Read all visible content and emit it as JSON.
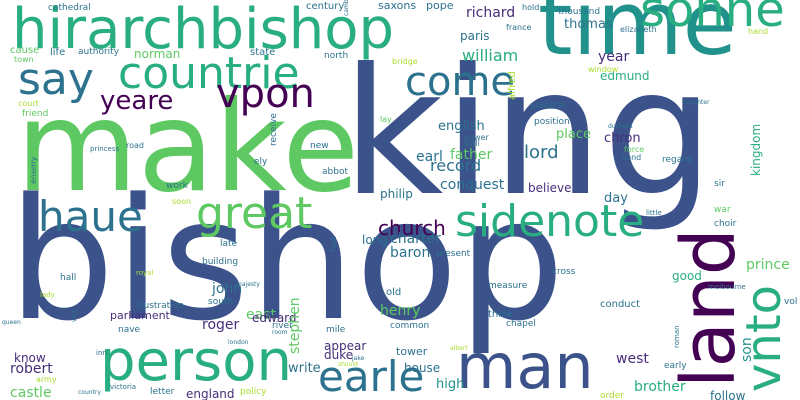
{
  "palette": {
    "c1": "#3b528b",
    "c2": "#21918c",
    "c3": "#5ec962",
    "c4": "#440154",
    "c5": "#2c728e",
    "c6": "#28ae80",
    "c7": "#addc30",
    "c8": "#472d7b",
    "c9": "#fde725"
  },
  "words": [
    {
      "id": "bishop",
      "text": "bishop",
      "color": "c1"
    },
    {
      "id": "king",
      "text": "king",
      "color": "c1"
    },
    {
      "id": "make",
      "text": "make",
      "color": "c3"
    },
    {
      "id": "time",
      "text": "time",
      "color": "c2"
    },
    {
      "id": "hirarchbishop",
      "text": "hirarchbishop",
      "color": "c6"
    },
    {
      "id": "sonne",
      "text": "sonne",
      "color": "c6"
    },
    {
      "id": "say",
      "text": "say",
      "color": "c5"
    },
    {
      "id": "countrie",
      "text": "countrie",
      "color": "c6"
    },
    {
      "id": "come",
      "text": "come",
      "color": "c5"
    },
    {
      "id": "yeare",
      "text": "yeare",
      "color": "c4"
    },
    {
      "id": "vpon",
      "text": "vpon",
      "color": "c4"
    },
    {
      "id": "haue",
      "text": "haue",
      "color": "c5"
    },
    {
      "id": "great",
      "text": "great",
      "color": "c3"
    },
    {
      "id": "sidenote",
      "text": "sidenote",
      "color": "c6"
    },
    {
      "id": "person",
      "text": "person",
      "color": "c6"
    },
    {
      "id": "earle",
      "text": "earle",
      "color": "c5"
    },
    {
      "id": "man",
      "text": "man",
      "color": "c1"
    },
    {
      "id": "land",
      "text": "land",
      "color": "c4"
    },
    {
      "id": "vnto",
      "text": "vnto",
      "color": "c6"
    },
    {
      "id": "church",
      "text": "church",
      "color": "c4"
    },
    {
      "id": "william",
      "text": "william",
      "color": "c6"
    },
    {
      "id": "richard",
      "text": "richard",
      "color": "c8"
    },
    {
      "id": "thomas",
      "text": "thomas",
      "color": "c5"
    },
    {
      "id": "edmund",
      "text": "edmund",
      "color": "c6"
    },
    {
      "id": "year",
      "text": "year",
      "color": "c8"
    },
    {
      "id": "lord",
      "text": "lord",
      "color": "c5"
    },
    {
      "id": "record",
      "text": "record",
      "color": "c5"
    },
    {
      "id": "father",
      "text": "father",
      "color": "c3"
    },
    {
      "id": "earl",
      "text": "earl",
      "color": "c5"
    },
    {
      "id": "english",
      "text": "english",
      "color": "c5"
    },
    {
      "id": "conquest",
      "text": "conquest",
      "color": "c5"
    },
    {
      "id": "chron",
      "text": "chron",
      "color": "c8"
    },
    {
      "id": "place",
      "text": "place",
      "color": "c3"
    },
    {
      "id": "kingdom",
      "text": "kingdom",
      "color": "c6"
    },
    {
      "id": "day",
      "text": "day",
      "color": "c5"
    },
    {
      "id": "prince",
      "text": "prince",
      "color": "c3"
    },
    {
      "id": "son",
      "text": "son",
      "color": "c2"
    },
    {
      "id": "john",
      "text": "john",
      "color": "c5"
    },
    {
      "id": "roger",
      "text": "roger",
      "color": "c8"
    },
    {
      "id": "east",
      "text": "east",
      "color": "c3"
    },
    {
      "id": "edward",
      "text": "edward",
      "color": "c8"
    },
    {
      "id": "henry",
      "text": "henry",
      "color": "c3"
    },
    {
      "id": "stephen",
      "text": "stephen",
      "color": "c3"
    },
    {
      "id": "baron",
      "text": "baron",
      "color": "c5"
    },
    {
      "id": "charter",
      "text": "charter",
      "color": "c5"
    },
    {
      "id": "long",
      "text": "long",
      "color": "c5"
    },
    {
      "id": "philip",
      "text": "philip",
      "color": "c5"
    },
    {
      "id": "believe",
      "text": "believe",
      "color": "c8"
    },
    {
      "id": "paris",
      "text": "paris",
      "color": "c5"
    },
    {
      "id": "norman",
      "text": "norman",
      "color": "c3"
    },
    {
      "id": "robert",
      "text": "robert",
      "color": "c8"
    },
    {
      "id": "castle",
      "text": "castle",
      "color": "c3"
    },
    {
      "id": "know",
      "text": "know",
      "color": "c8"
    },
    {
      "id": "duke",
      "text": "duke",
      "color": "c8"
    },
    {
      "id": "appear",
      "text": "appear",
      "color": "c8"
    },
    {
      "id": "write",
      "text": "write",
      "color": "c5"
    },
    {
      "id": "house",
      "text": "house",
      "color": "c5"
    },
    {
      "id": "tower",
      "text": "tower",
      "color": "c5"
    },
    {
      "id": "west",
      "text": "west",
      "color": "c8"
    },
    {
      "id": "high",
      "text": "high",
      "color": "c2"
    },
    {
      "id": "brother",
      "text": "brother",
      "color": "c6"
    },
    {
      "id": "follow",
      "text": "follow",
      "color": "c5"
    },
    {
      "id": "good",
      "text": "good",
      "color": "c6"
    },
    {
      "id": "england",
      "text": "england",
      "color": "c8"
    },
    {
      "id": "parliament",
      "text": "parliament",
      "color": "c8"
    },
    {
      "id": "saxons",
      "text": "saxons",
      "color": "c5"
    },
    {
      "id": "pope",
      "text": "pope",
      "color": "c5"
    },
    {
      "id": "century",
      "text": "century",
      "color": "c5"
    },
    {
      "id": "cathedral",
      "text": "cathedral",
      "color": "c5"
    },
    {
      "id": "life",
      "text": "life",
      "color": "c5"
    },
    {
      "id": "authority",
      "text": "authority",
      "color": "c5"
    },
    {
      "id": "cause",
      "text": "cause",
      "color": "c3"
    },
    {
      "id": "town",
      "text": "town",
      "color": "c3"
    },
    {
      "id": "state",
      "text": "state",
      "color": "c5"
    },
    {
      "id": "north",
      "text": "north",
      "color": "c5"
    },
    {
      "id": "court",
      "text": "court",
      "color": "c7"
    },
    {
      "id": "friend",
      "text": "friend",
      "color": "c3"
    },
    {
      "id": "alfred",
      "text": "alfred",
      "color": "c7"
    },
    {
      "id": "bridge",
      "text": "bridge",
      "color": "c7"
    },
    {
      "id": "lay",
      "text": "lay",
      "color": "c3"
    },
    {
      "id": "wall",
      "text": "wall",
      "color": "c5"
    },
    {
      "id": "power",
      "text": "power",
      "color": "c5"
    },
    {
      "id": "position",
      "text": "position",
      "color": "c5"
    },
    {
      "id": "political",
      "text": "political",
      "color": "c5"
    },
    {
      "id": "hold",
      "text": "hold",
      "color": "c5"
    },
    {
      "id": "france",
      "text": "france",
      "color": "c5"
    },
    {
      "id": "thousand",
      "text": "thousand",
      "color": "c5"
    },
    {
      "id": "window",
      "text": "window",
      "color": "c7"
    },
    {
      "id": "elizabeth",
      "text": "elizabeth",
      "color": "c5"
    },
    {
      "id": "hand",
      "text": "hand",
      "color": "c7"
    },
    {
      "id": "road",
      "text": "road",
      "color": "c5"
    },
    {
      "id": "new",
      "text": "new",
      "color": "c5"
    },
    {
      "id": "abbot",
      "text": "abbot",
      "color": "c5"
    },
    {
      "id": "ely",
      "text": "ely",
      "color": "c5"
    },
    {
      "id": "receive",
      "text": "receive",
      "color": "c5"
    },
    {
      "id": "princess",
      "text": "princess",
      "color": "c5"
    },
    {
      "id": "enemy",
      "text": "enemy",
      "color": "c5"
    },
    {
      "id": "work",
      "text": "work",
      "color": "c5"
    },
    {
      "id": "soon",
      "text": "soon",
      "color": "c7"
    },
    {
      "id": "late",
      "text": "late",
      "color": "c5"
    },
    {
      "id": "building",
      "text": "building",
      "color": "c5"
    },
    {
      "id": "illustration",
      "text": "illustration",
      "color": "c5"
    },
    {
      "id": "south",
      "text": "south",
      "color": "c5"
    },
    {
      "id": "nave",
      "text": "nave",
      "color": "c5"
    },
    {
      "id": "river",
      "text": "river",
      "color": "c5"
    },
    {
      "id": "mile",
      "text": "mile",
      "color": "c5"
    },
    {
      "id": "old",
      "text": "old",
      "color": "c5"
    },
    {
      "id": "present",
      "text": "present",
      "color": "c5"
    },
    {
      "id": "measure",
      "text": "measure",
      "color": "c5"
    },
    {
      "id": "think",
      "text": "think",
      "color": "c5"
    },
    {
      "id": "common",
      "text": "common",
      "color": "c5"
    },
    {
      "id": "chapel",
      "text": "chapel",
      "color": "c5"
    },
    {
      "id": "conduct",
      "text": "conduct",
      "color": "c5"
    },
    {
      "id": "cross",
      "text": "cross",
      "color": "c5"
    },
    {
      "id": "melbourne",
      "text": "melbourne",
      "color": "c5"
    },
    {
      "id": "war",
      "text": "war",
      "color": "c3"
    },
    {
      "id": "choir",
      "text": "choir",
      "color": "c5"
    },
    {
      "id": "sir",
      "text": "sir",
      "color": "c5"
    },
    {
      "id": "regard",
      "text": "regard",
      "color": "c5"
    },
    {
      "id": "send",
      "text": "send",
      "color": "c5"
    },
    {
      "id": "force",
      "text": "force",
      "color": "c3"
    },
    {
      "id": "duchess",
      "text": "duchess",
      "color": "c5"
    },
    {
      "id": "daughter",
      "text": "daughter",
      "color": "c5"
    },
    {
      "id": "little",
      "text": "little",
      "color": "c5"
    },
    {
      "id": "vol",
      "text": "vol",
      "color": "c5"
    },
    {
      "id": "early",
      "text": "early",
      "color": "c5"
    },
    {
      "id": "roman",
      "text": "roman",
      "color": "c5"
    },
    {
      "id": "order",
      "text": "order",
      "color": "c7"
    },
    {
      "id": "policy",
      "text": "policy",
      "color": "c7"
    },
    {
      "id": "letter",
      "text": "letter",
      "color": "c5"
    },
    {
      "id": "victoria",
      "text": "victoria",
      "color": "c5"
    },
    {
      "id": "country",
      "text": "country",
      "color": "c5"
    },
    {
      "id": "army",
      "text": "army",
      "color": "c7"
    },
    {
      "id": "queen",
      "text": "queen",
      "color": "c5"
    },
    {
      "id": "lady",
      "text": "lady",
      "color": "c7"
    },
    {
      "id": "hall",
      "text": "hall",
      "color": "c5"
    },
    {
      "id": "royal",
      "text": "royal",
      "color": "c7"
    },
    {
      "id": "fact",
      "text": "fact",
      "color": "c5"
    },
    {
      "id": "majesty",
      "text": "majesty",
      "color": "c5"
    },
    {
      "id": "visit",
      "text": "visit",
      "color": "c5"
    },
    {
      "id": "london",
      "text": "london",
      "color": "c5"
    },
    {
      "id": "room",
      "text": "room",
      "color": "c5"
    },
    {
      "id": "inn",
      "text": "inn",
      "color": "c5"
    },
    {
      "id": "albert",
      "text": "albert",
      "color": "c7"
    },
    {
      "id": "jake",
      "text": "jake",
      "color": "c5"
    },
    {
      "id": "should",
      "text": "should",
      "color": "c7"
    },
    {
      "id": "cambridge",
      "text": "cambridge",
      "color": "c5"
    }
  ]
}
